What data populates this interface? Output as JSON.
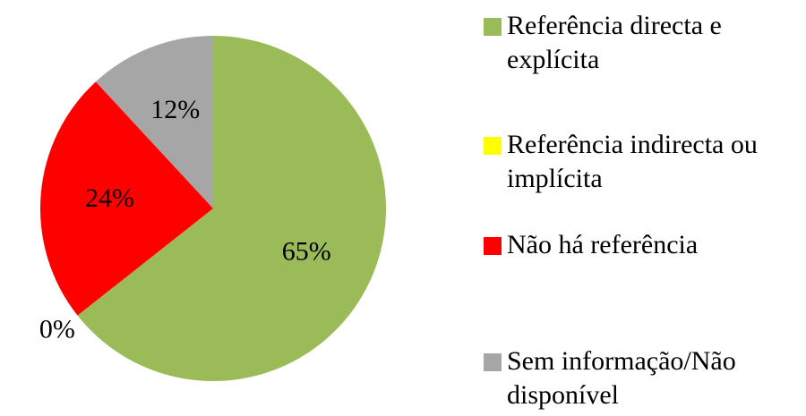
{
  "chart_data": {
    "type": "pie",
    "categories": [
      "Referência directa e explícita",
      "Referência indirecta ou implícita",
      "Não há referência",
      "Sem informação/Não disponível"
    ],
    "values": [
      65,
      0,
      24,
      12
    ],
    "value_labels": [
      "65%",
      "0%",
      "24%",
      "12%"
    ],
    "colors": [
      "#9bbb59",
      "#ffff00",
      "#ff0000",
      "#a6a6a6"
    ],
    "legend": "right"
  }
}
